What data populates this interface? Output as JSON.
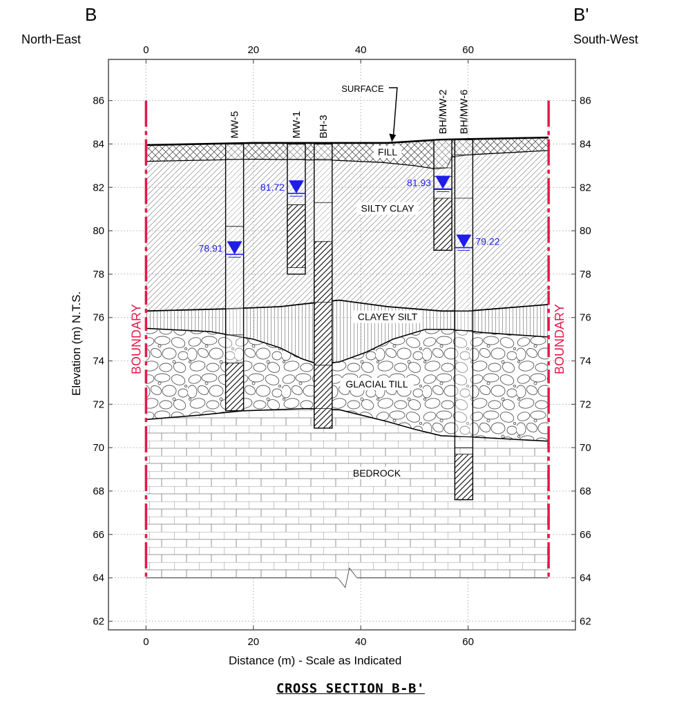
{
  "header": {
    "left_letter": "B",
    "left_direction": "North-East",
    "right_letter": "B'",
    "right_direction": "South-West"
  },
  "footer": {
    "title": "CROSS SECTION B-B'"
  },
  "axes": {
    "x_label": "Distance (m) - Scale as Indicated",
    "y_label": "Elevation (m) N.T.S.",
    "x_ticks": [
      0,
      20,
      40,
      60
    ],
    "y_ticks": [
      62,
      64,
      66,
      68,
      70,
      72,
      74,
      76,
      78,
      80,
      82,
      84,
      86
    ],
    "x_range": [
      -7,
      80
    ],
    "y_range": [
      61.6,
      87.9
    ],
    "grid": true
  },
  "boundary": {
    "label": "BOUNDARY",
    "left_x": 0,
    "right_x": 75,
    "color": "#e8174b",
    "top_elevation": 86,
    "bottom_elevation": 64
  },
  "colors": {
    "water_level": "#1e1ee6",
    "boundary": "#e8174b",
    "linework": "#000000"
  },
  "layers": {
    "surface_label": "SURFACE",
    "fill_label": "FILL",
    "silty_clay_label": "SILTY CLAY",
    "clayey_silt_label": "CLAYEY SILT",
    "glacial_till_label": "GLACIAL TILL",
    "bedrock_label": "BEDROCK",
    "ground_surface": [
      [
        0,
        83.95
      ],
      [
        20,
        84.05
      ],
      [
        45,
        84.05
      ],
      [
        55,
        84.2
      ],
      [
        75,
        84.3
      ]
    ],
    "fill_base": [
      [
        0,
        83.2
      ],
      [
        20,
        83.3
      ],
      [
        35,
        83.25
      ],
      [
        44,
        83.15
      ],
      [
        50,
        83.0
      ],
      [
        54,
        82.85
      ],
      [
        56,
        82.9
      ],
      [
        57,
        83.4
      ],
      [
        60,
        83.5
      ],
      [
        75,
        83.7
      ]
    ],
    "silty_clay_base": [
      [
        0,
        76.3
      ],
      [
        15,
        76.4
      ],
      [
        25,
        76.5
      ],
      [
        32,
        76.7
      ],
      [
        36,
        76.8
      ],
      [
        45,
        76.5
      ],
      [
        55,
        76.3
      ],
      [
        60,
        76.3
      ],
      [
        75,
        76.6
      ]
    ],
    "clayey_silt_base": [
      [
        0,
        75.5
      ],
      [
        12,
        75.35
      ],
      [
        20,
        75.0
      ],
      [
        25,
        74.6
      ],
      [
        29,
        74.1
      ],
      [
        32,
        73.85
      ],
      [
        36,
        73.95
      ],
      [
        41,
        74.4
      ],
      [
        46,
        75.0
      ],
      [
        52,
        75.45
      ],
      [
        57,
        75.45
      ],
      [
        63,
        75.3
      ],
      [
        75,
        75.1
      ]
    ],
    "glacial_till_base": [
      [
        0,
        71.3
      ],
      [
        10,
        71.5
      ],
      [
        18,
        71.7
      ],
      [
        30,
        71.8
      ],
      [
        36,
        71.75
      ],
      [
        45,
        71.2
      ],
      [
        50,
        70.85
      ],
      [
        55,
        70.55
      ],
      [
        60,
        70.5
      ],
      [
        75,
        70.3
      ]
    ],
    "bedrock_bottom": 64
  },
  "boreholes": [
    {
      "name": "MW-5",
      "x": 16.5,
      "top": 84.0,
      "bottom": 71.7,
      "divisions": [
        83.3,
        80.2,
        75.2,
        73.9
      ],
      "sample_zones": [
        [
          73.9,
          71.7
        ]
      ],
      "water_level": 78.91,
      "water_label": "78.91",
      "label_side": "left"
    },
    {
      "name": "MW-1",
      "x": 28.0,
      "top": 84.0,
      "bottom": 78.0,
      "divisions": [
        83.3,
        81.2,
        78.3
      ],
      "sample_zones": [
        [
          81.2,
          78.3
        ]
      ],
      "water_level": 81.72,
      "water_label": "81.72",
      "label_side": "left"
    },
    {
      "name": "BH-3",
      "x": 33.0,
      "top": 84.0,
      "bottom": 70.9,
      "divisions": [
        83.3,
        81.3,
        79.5,
        76.7,
        73.8,
        71.8
      ],
      "sample_zones": [
        [
          79.5,
          70.9
        ]
      ],
      "water_level": null,
      "water_label": "",
      "label_side": "left"
    },
    {
      "name": "BH/MW-2",
      "x": 55.3,
      "top": 84.2,
      "bottom": 79.1,
      "divisions": [
        82.9,
        82.5,
        81.9,
        81.5
      ],
      "sample_zones": [
        [
          81.5,
          79.1
        ]
      ],
      "water_level": 81.93,
      "water_label": "81.93",
      "label_side": "left"
    },
    {
      "name": "BH/MW-6",
      "x": 59.2,
      "top": 84.2,
      "bottom": 67.6,
      "divisions": [
        83.5,
        81.5,
        76.3,
        75.4,
        70.5,
        70.0,
        69.7
      ],
      "sample_zones": [
        [
          69.7,
          67.6
        ]
      ],
      "water_level": 79.22,
      "water_label": "79.22",
      "label_side": "right"
    }
  ]
}
